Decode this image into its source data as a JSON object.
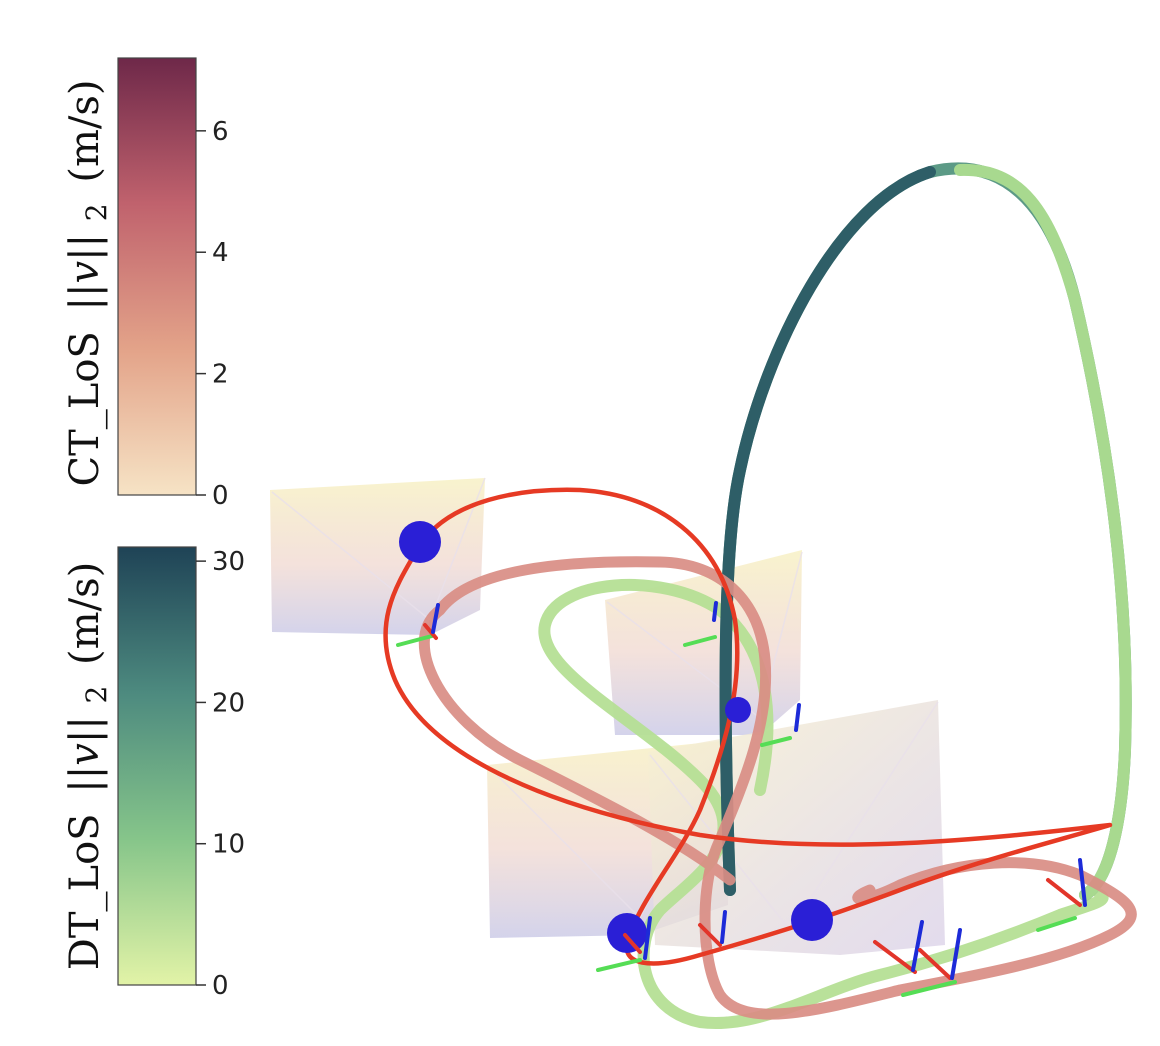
{
  "chart_data": {
    "type": "3d-trajectory",
    "colorbars": [
      {
        "name": "CT_LoS",
        "title": "CT_LoS ||v||2 (m/s)",
        "title_parts": {
          "prefix": "CT_LoS",
          "norm": "||v||",
          "sub": "2",
          "unit": "(m/s)"
        },
        "range": [
          0,
          7.2
        ],
        "ticks": [
          0,
          2,
          4,
          6
        ],
        "tick_labels": [
          "0",
          "2",
          "4",
          "6"
        ],
        "colorscale": [
          "#f6e3c5",
          "#e3a389",
          "#c0626d",
          "#6e2849"
        ]
      },
      {
        "name": "DT_LoS",
        "title": "DT_LoS ||v||2 (m/s)",
        "title_parts": {
          "prefix": "DT_LoS",
          "norm": "||v||",
          "sub": "2",
          "unit": "(m/s)"
        },
        "range": [
          0,
          31
        ],
        "ticks": [
          0,
          10,
          20,
          30
        ],
        "tick_labels": [
          "0",
          "10",
          "20",
          "30"
        ],
        "colorscale": [
          "#e2f3a7",
          "#86c58a",
          "#4d8a7f",
          "#1f4356"
        ]
      }
    ],
    "scene": {
      "waypoints": 4,
      "gates": 4,
      "colors": {
        "ct_path": "#e33a25",
        "waypoint": "#2a1fd6",
        "axis_x": "#e2352a",
        "axis_y": "#4cd94c",
        "axis_z": "#1d2bd8"
      }
    }
  }
}
